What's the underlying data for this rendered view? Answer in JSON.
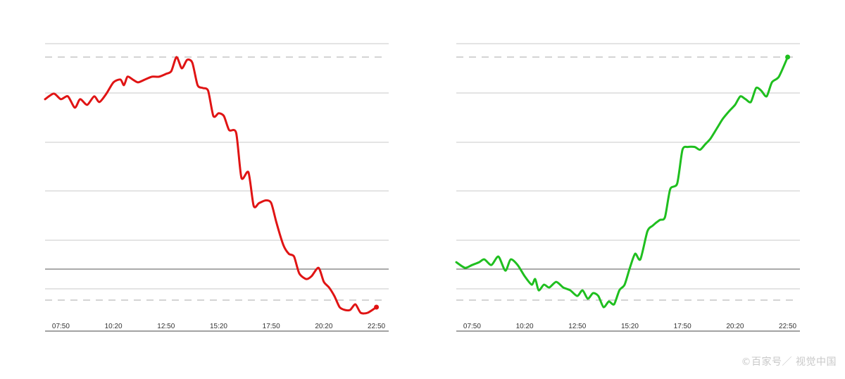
{
  "chart_data": [
    {
      "type": "line",
      "color": "#e01414",
      "x_ticks": [
        "07:50",
        "10:20",
        "12:50",
        "15:20",
        "17:50",
        "20:20",
        "22:50"
      ],
      "ylim": [
        0,
        100
      ],
      "reference_lines": {
        "dashed_top": 95,
        "dashed_bottom": 5,
        "baseline": 18
      },
      "grid": true,
      "series": [
        {
          "x": [
            "07:05",
            "07:30",
            "07:50",
            "08:10",
            "08:30",
            "08:45",
            "09:05",
            "09:25",
            "09:40",
            "10:00",
            "10:20",
            "10:40",
            "10:50",
            "11:00",
            "11:15",
            "11:30",
            "11:50",
            "12:10",
            "12:30",
            "12:50",
            "13:05",
            "13:20",
            "13:35",
            "13:50",
            "14:05",
            "14:20",
            "14:35",
            "14:50",
            "15:05",
            "15:20",
            "15:35",
            "15:50",
            "16:10",
            "16:25",
            "16:45",
            "17:00",
            "17:15",
            "17:35",
            "17:50",
            "18:05",
            "18:25",
            "18:40",
            "18:55",
            "19:10",
            "19:30",
            "19:45",
            "20:05",
            "20:20",
            "20:35",
            "20:50",
            "21:05",
            "21:20",
            "21:35",
            "21:50",
            "22:05",
            "22:25",
            "22:50"
          ],
          "y": [
            80,
            82,
            80,
            81,
            77,
            80,
            78,
            81,
            79,
            82,
            86,
            87,
            85,
            88,
            87,
            86,
            87,
            88,
            88,
            89,
            90,
            95,
            91,
            94,
            93,
            85,
            84,
            83,
            74,
            75,
            74,
            69,
            68,
            52,
            54,
            42,
            43,
            44,
            43,
            36,
            28,
            25,
            24,
            18,
            16,
            17,
            20,
            15,
            13,
            10,
            6,
            5,
            5,
            7,
            4,
            4,
            6
          ]
        }
      ]
    },
    {
      "type": "line",
      "color": "#1fbf1f",
      "x_ticks": [
        "07:50",
        "10:20",
        "12:50",
        "15:20",
        "17:50",
        "20:20",
        "22:50"
      ],
      "ylim": [
        0,
        100
      ],
      "reference_lines": {
        "dashed_top": 95,
        "dashed_bottom": 5,
        "baseline": 18
      },
      "grid": true,
      "series": [
        {
          "x": [
            "07:05",
            "07:30",
            "07:50",
            "08:10",
            "08:25",
            "08:45",
            "09:05",
            "09:25",
            "09:40",
            "10:00",
            "10:20",
            "10:40",
            "10:50",
            "11:00",
            "11:15",
            "11:30",
            "11:50",
            "12:10",
            "12:30",
            "12:50",
            "13:05",
            "13:20",
            "13:35",
            "13:50",
            "14:05",
            "14:20",
            "14:35",
            "14:50",
            "15:05",
            "15:20",
            "15:35",
            "15:50",
            "16:10",
            "16:25",
            "16:45",
            "17:00",
            "17:15",
            "17:35",
            "17:50",
            "18:05",
            "18:25",
            "18:40",
            "18:55",
            "19:10",
            "19:30",
            "19:45",
            "20:05",
            "20:20",
            "20:35",
            "20:50",
            "21:05",
            "21:20",
            "21:35",
            "21:50",
            "22:05",
            "22:25",
            "22:50"
          ],
          "y": [
            22,
            20,
            21,
            22,
            23,
            21,
            24,
            19,
            23,
            21,
            17,
            14,
            16,
            12,
            14,
            13,
            15,
            13,
            12,
            10,
            12,
            9,
            11,
            10,
            6,
            8,
            7,
            12,
            14,
            20,
            25,
            23,
            33,
            35,
            37,
            38,
            48,
            50,
            62,
            63,
            63,
            62,
            64,
            66,
            70,
            73,
            76,
            78,
            81,
            80,
            79,
            84,
            83,
            81,
            86,
            88,
            95
          ]
        }
      ]
    }
  ],
  "watermark": "©百家号／ 视觉中国"
}
